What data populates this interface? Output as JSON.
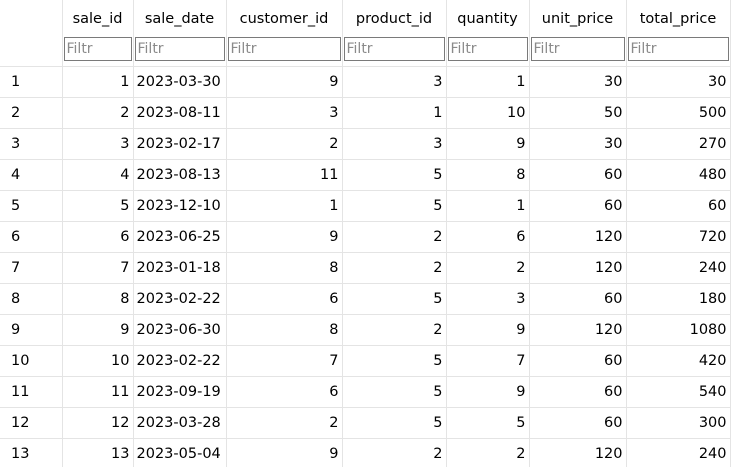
{
  "table": {
    "columns": [
      "sale_id",
      "sale_date",
      "customer_id",
      "product_id",
      "quantity",
      "unit_price",
      "total_price"
    ],
    "filter_placeholder": "Filtr",
    "rows": [
      {
        "num": "1",
        "cells": [
          "1",
          "2023-03-30",
          "9",
          "3",
          "1",
          "30",
          "30"
        ]
      },
      {
        "num": "2",
        "cells": [
          "2",
          "2023-08-11",
          "3",
          "1",
          "10",
          "50",
          "500"
        ]
      },
      {
        "num": "3",
        "cells": [
          "3",
          "2023-02-17",
          "2",
          "3",
          "9",
          "30",
          "270"
        ]
      },
      {
        "num": "4",
        "cells": [
          "4",
          "2023-08-13",
          "11",
          "5",
          "8",
          "60",
          "480"
        ]
      },
      {
        "num": "5",
        "cells": [
          "5",
          "2023-12-10",
          "1",
          "5",
          "1",
          "60",
          "60"
        ]
      },
      {
        "num": "6",
        "cells": [
          "6",
          "2023-06-25",
          "9",
          "2",
          "6",
          "120",
          "720"
        ]
      },
      {
        "num": "7",
        "cells": [
          "7",
          "2023-01-18",
          "8",
          "2",
          "2",
          "120",
          "240"
        ]
      },
      {
        "num": "8",
        "cells": [
          "8",
          "2023-02-22",
          "6",
          "5",
          "3",
          "60",
          "180"
        ]
      },
      {
        "num": "9",
        "cells": [
          "9",
          "2023-06-30",
          "8",
          "2",
          "9",
          "120",
          "1080"
        ]
      },
      {
        "num": "10",
        "cells": [
          "10",
          "2023-02-22",
          "7",
          "5",
          "7",
          "60",
          "420"
        ]
      },
      {
        "num": "11",
        "cells": [
          "11",
          "2023-09-19",
          "6",
          "5",
          "9",
          "60",
          "540"
        ]
      },
      {
        "num": "12",
        "cells": [
          "12",
          "2023-03-28",
          "2",
          "5",
          "5",
          "60",
          "300"
        ]
      },
      {
        "num": "13",
        "cells": [
          "13",
          "2023-05-04",
          "9",
          "2",
          "2",
          "120",
          "240"
        ]
      }
    ]
  }
}
